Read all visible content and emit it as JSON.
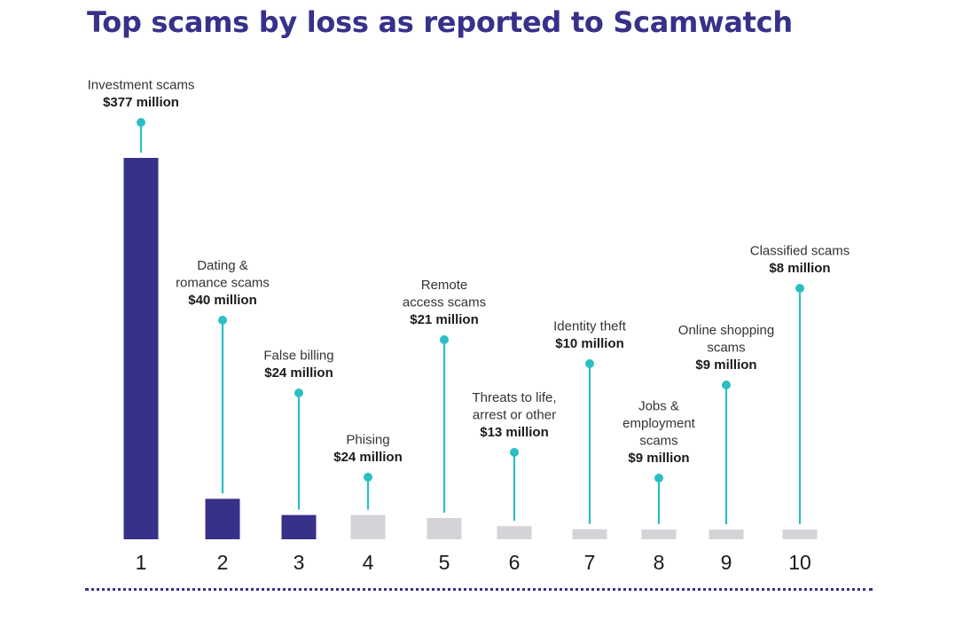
{
  "title": "Top scams by loss as reported to Scamwatch",
  "colors": {
    "highlight": "#37318a",
    "muted": "#d4d4d8",
    "stem": "#2bbfc4",
    "label": "#333333"
  },
  "chart_data": {
    "type": "bar",
    "categories": [
      "1",
      "2",
      "3",
      "4",
      "5",
      "6",
      "7",
      "8",
      "9",
      "10"
    ],
    "values": [
      377,
      40,
      24,
      24,
      21,
      13,
      10,
      9,
      9,
      8
    ],
    "unit": "million",
    "value_labels": [
      "$377 million",
      "$40 million",
      "$24 million",
      "$24 million",
      "$21 million",
      "$13 million",
      "$10 million",
      "$9 million",
      "$9 million",
      "$8 million"
    ],
    "scam_names": [
      [
        "Investment scams"
      ],
      [
        "Dating &",
        "romance scams"
      ],
      [
        "False billing"
      ],
      [
        "Phising"
      ],
      [
        "Remote",
        "access scams"
      ],
      [
        "Threats to life,",
        "arrest or other"
      ],
      [
        "Identity theft"
      ],
      [
        "Jobs &",
        "employment",
        "scams"
      ],
      [
        "Online shopping",
        "scams"
      ],
      [
        "Classified scams"
      ]
    ],
    "highlighted": [
      true,
      true,
      true,
      false,
      false,
      false,
      false,
      false,
      false,
      false
    ],
    "ylim": [
      0,
      377
    ]
  }
}
